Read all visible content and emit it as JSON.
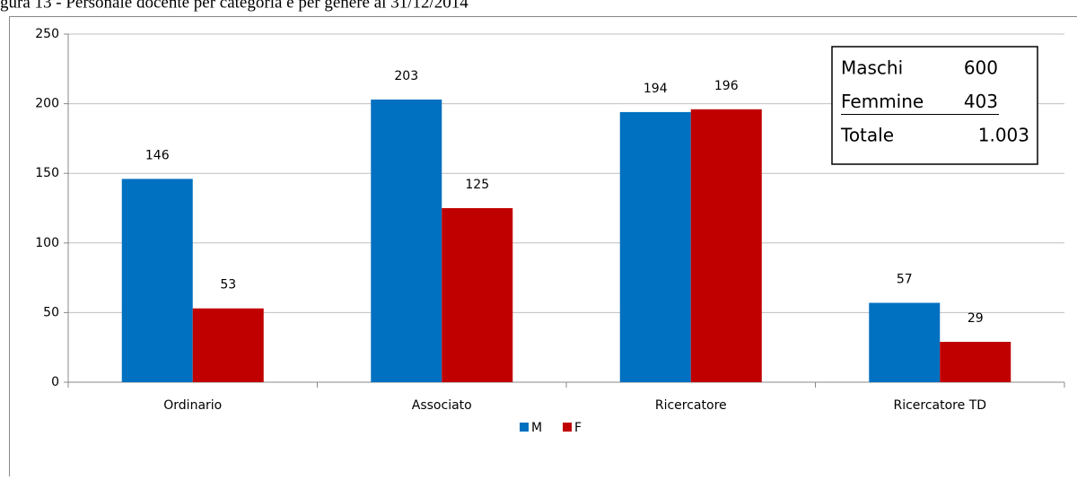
{
  "chart_data": {
    "type": "bar",
    "title": "gura 13 - Personale docente per categoria e per genere al 31/12/2014",
    "categories": [
      "Ordinario",
      "Associato",
      "Ricercatore",
      "Ricercatore TD"
    ],
    "series": [
      {
        "name": "M",
        "color": "#0070c0",
        "values": [
          146,
          203,
          194,
          57
        ]
      },
      {
        "name": "F",
        "color": "#c00000",
        "values": [
          53,
          125,
          196,
          29
        ]
      }
    ],
    "ylim": [
      0,
      250
    ],
    "yticks": [
      0,
      50,
      100,
      150,
      200,
      250
    ],
    "grid": true,
    "legend": "bottom",
    "annotation": [
      {
        "label": "Maschi",
        "value": 600
      },
      {
        "label": "Femmine",
        "value": 403
      },
      {
        "label": "Totale",
        "value": 1003,
        "value_label": "1.003"
      }
    ]
  }
}
